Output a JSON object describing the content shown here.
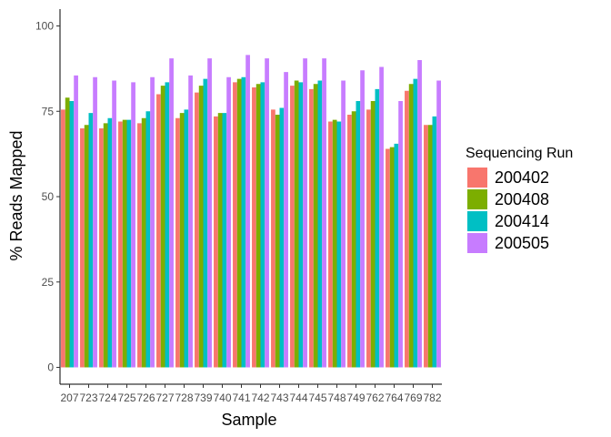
{
  "chart_data": {
    "type": "bar",
    "xlabel": "Sample",
    "ylabel": "% Reads Mapped",
    "ylim": [
      0,
      105
    ],
    "yticks": [
      0,
      25,
      50,
      75,
      100
    ],
    "grid": false,
    "legend_title": "Sequencing Run",
    "legend_position": "right",
    "categories": [
      "207",
      "723",
      "724",
      "725",
      "726",
      "727",
      "728",
      "739",
      "740",
      "741",
      "742",
      "743",
      "744",
      "745",
      "748",
      "749",
      "762",
      "764",
      "769",
      "782"
    ],
    "series": [
      {
        "name": "200402",
        "color": "#F8766D",
        "values": [
          75.5,
          70.0,
          70.0,
          72.0,
          71.5,
          80.0,
          73.0,
          80.5,
          73.5,
          83.5,
          82.0,
          75.5,
          82.5,
          81.5,
          72.0,
          74.0,
          75.5,
          64.0,
          81.0,
          71.0
        ]
      },
      {
        "name": "200408",
        "color": "#7CAE00",
        "values": [
          79.0,
          71.0,
          71.5,
          72.5,
          73.0,
          82.5,
          74.5,
          82.5,
          74.5,
          84.5,
          83.0,
          74.0,
          84.0,
          83.0,
          72.5,
          75.0,
          78.0,
          64.5,
          83.0,
          71.0
        ]
      },
      {
        "name": "200414",
        "color": "#00BFC4",
        "values": [
          78.0,
          74.5,
          73.0,
          72.5,
          75.0,
          83.5,
          75.5,
          84.5,
          74.5,
          85.0,
          83.5,
          76.0,
          83.5,
          84.0,
          72.0,
          78.0,
          81.5,
          65.5,
          84.5,
          73.5
        ]
      },
      {
        "name": "200505",
        "color": "#C77CFF",
        "values": [
          85.5,
          85.0,
          84.0,
          83.5,
          85.0,
          90.5,
          85.5,
          90.5,
          85.0,
          91.5,
          90.5,
          86.5,
          90.5,
          90.5,
          84.0,
          87.0,
          88.0,
          78.0,
          90.0,
          84.0
        ]
      }
    ]
  }
}
